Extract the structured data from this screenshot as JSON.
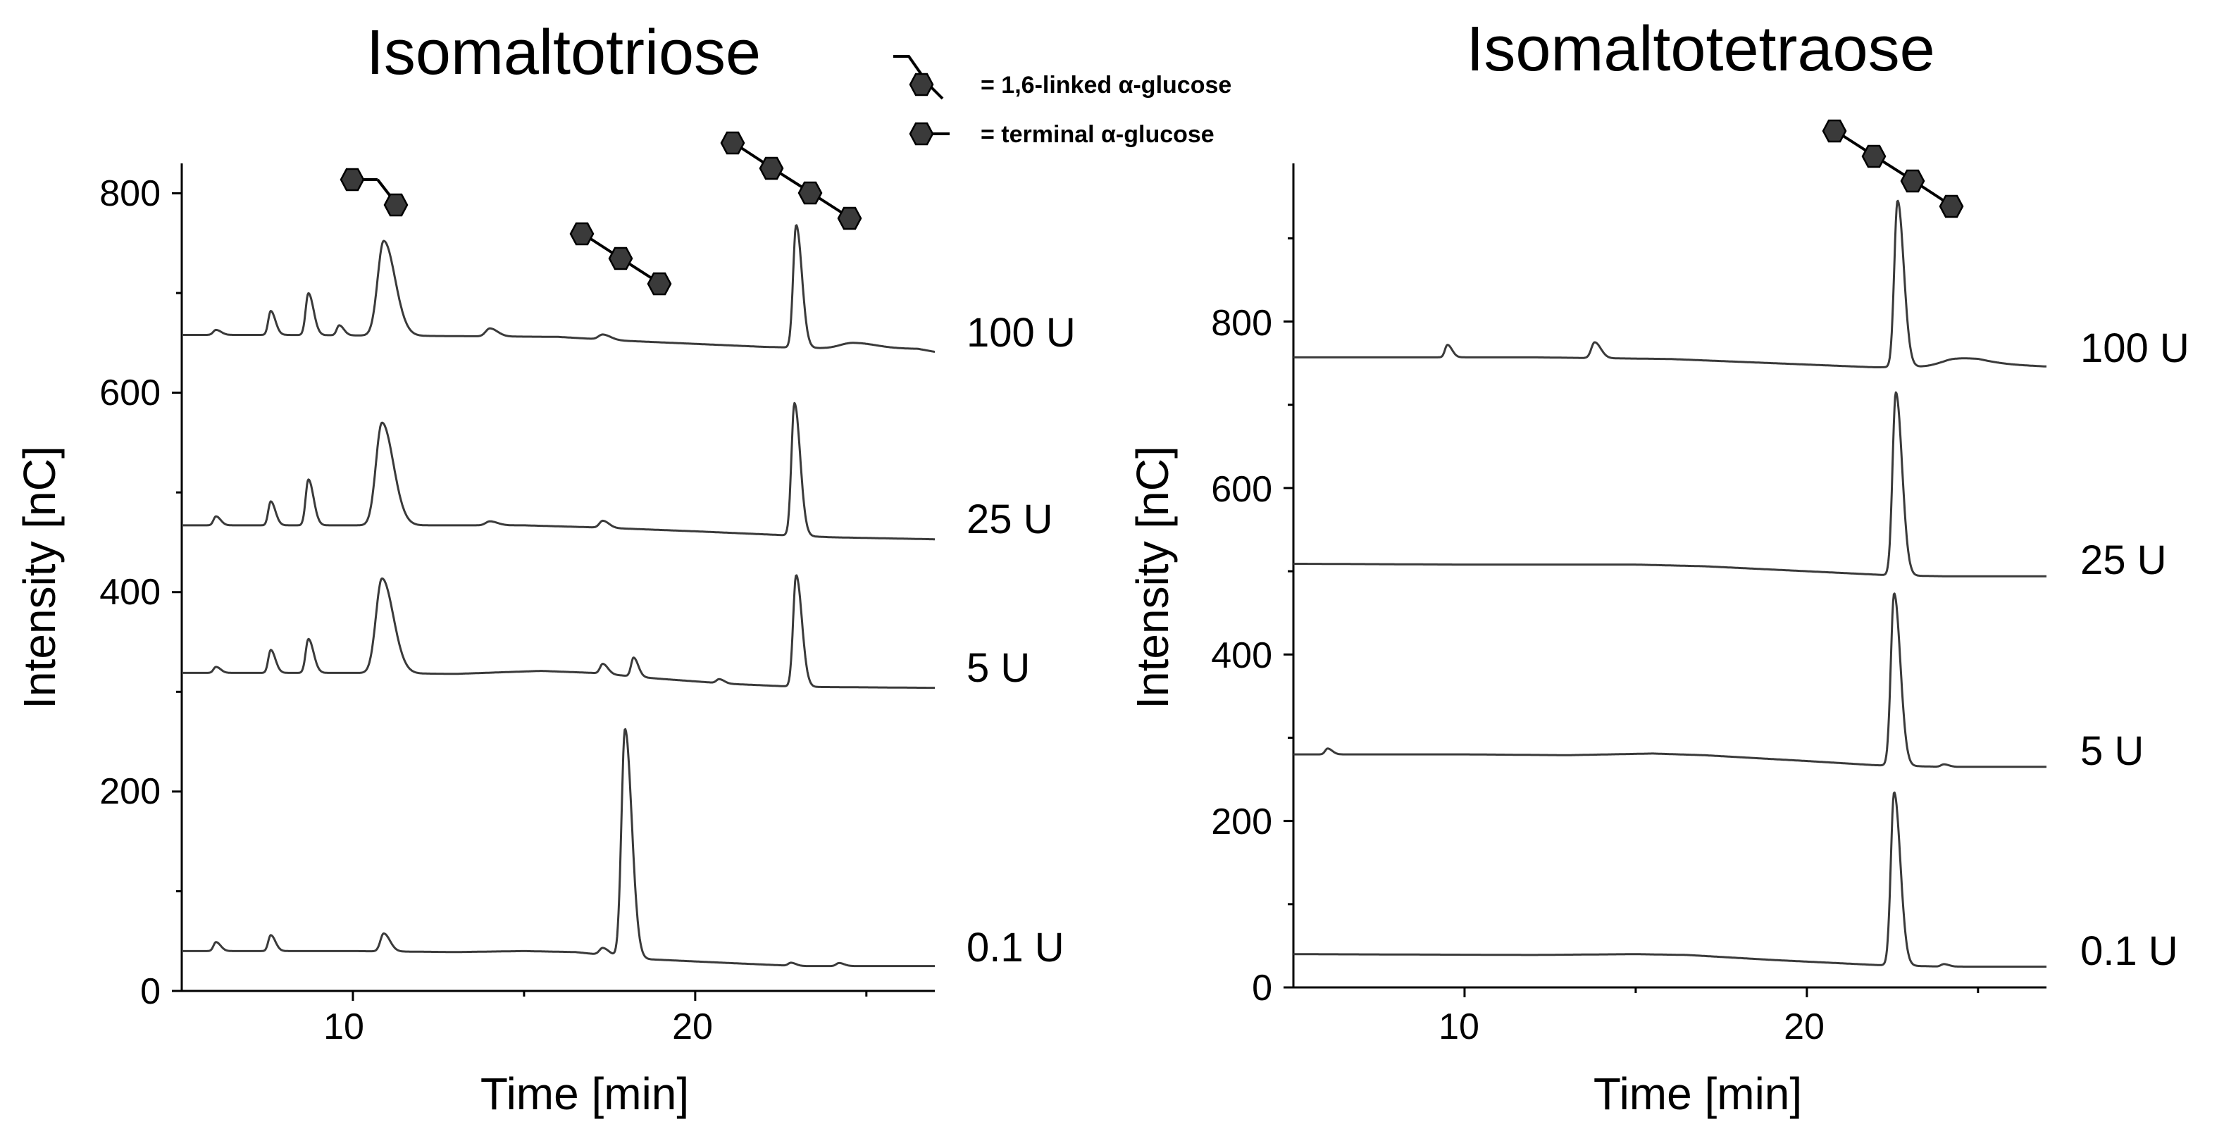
{
  "legend": {
    "linked_label": "= 1,6-linked α-glucose",
    "terminal_label": "= terminal α-glucose"
  },
  "colors": {
    "trace": "#3a3a3a",
    "glucose_fill": "#3a3a3a",
    "axis": "#000000"
  },
  "chart_data": [
    {
      "type": "line",
      "title": "Isomaltotriose",
      "xlabel": "Time [min]",
      "ylabel": "Intensity [nC]",
      "xlim": [
        5,
        27
      ],
      "ylim": [
        0,
        830
      ],
      "xticks": [
        10,
        20
      ],
      "yticks": [
        0,
        200,
        400,
        600,
        800
      ],
      "x_tick_labels": [
        "10",
        "20"
      ],
      "y_tick_labels": [
        "0",
        "200",
        "400",
        "600",
        "800"
      ],
      "series": [
        {
          "name": "100 U",
          "label_y": 650,
          "baseline": [
            [
              5,
              658
            ],
            [
              8,
              658
            ],
            [
              12,
              657
            ],
            [
              16,
              656
            ],
            [
              18,
              652
            ],
            [
              20,
              649
            ],
            [
              22,
              646
            ],
            [
              24.5,
              644
            ],
            [
              26.5,
              644
            ],
            [
              27,
              641
            ]
          ],
          "peaks": [
            [
              6,
              5,
              0.1
            ],
            [
              7.6,
              24,
              0.09
            ],
            [
              8.7,
              42,
              0.1
            ],
            [
              9.6,
              10,
              0.09
            ],
            [
              10.9,
              95,
              0.22
            ],
            [
              14,
              8,
              0.15
            ],
            [
              17.3,
              5,
              0.15
            ],
            [
              22.95,
              123,
              0.11
            ],
            [
              24.6,
              6,
              0.45
            ]
          ]
        },
        {
          "name": "25 U",
          "label_y": 468,
          "baseline": [
            [
              5,
              467
            ],
            [
              9,
              467
            ],
            [
              12,
              467
            ],
            [
              15,
              467
            ],
            [
              17,
              465
            ],
            [
              20,
              461
            ],
            [
              22,
              458
            ],
            [
              24,
              455
            ],
            [
              27,
              453
            ]
          ],
          "peaks": [
            [
              6,
              9,
              0.09
            ],
            [
              7.6,
              24,
              0.09
            ],
            [
              8.7,
              46,
              0.1
            ],
            [
              10.85,
              103,
              0.22
            ],
            [
              14,
              4,
              0.15
            ],
            [
              17.3,
              7,
              0.12
            ],
            [
              22.9,
              133,
              0.11
            ]
          ]
        },
        {
          "name": "5 U",
          "label_y": 320,
          "baseline": [
            [
              5,
              319
            ],
            [
              10,
              319
            ],
            [
              13,
              318
            ],
            [
              15.5,
              321
            ],
            [
              17,
              319
            ],
            [
              19,
              313
            ],
            [
              21,
              308
            ],
            [
              23,
              305
            ],
            [
              27,
              304
            ]
          ],
          "peaks": [
            [
              6,
              6,
              0.09
            ],
            [
              7.6,
              23,
              0.09
            ],
            [
              8.7,
              34,
              0.1
            ],
            [
              10.85,
              95,
              0.22
            ],
            [
              17.3,
              10,
              0.1
            ],
            [
              18.2,
              19,
              0.09
            ],
            [
              20.7,
              4,
              0.1
            ],
            [
              22.95,
              112,
              0.11
            ]
          ]
        },
        {
          "name": "0.1 U",
          "label_y": 40,
          "baseline": [
            [
              5,
              40
            ],
            [
              10,
              40
            ],
            [
              13,
              39
            ],
            [
              15,
              40
            ],
            [
              16.5,
              39
            ],
            [
              18.5,
              32
            ],
            [
              21,
              28
            ],
            [
              23,
              25
            ],
            [
              27,
              25
            ]
          ],
          "peaks": [
            [
              6,
              9,
              0.09
            ],
            [
              7.6,
              16,
              0.09
            ],
            [
              10.9,
              18,
              0.12
            ],
            [
              17.3,
              7,
              0.12
            ],
            [
              17.95,
              229,
              0.13
            ],
            [
              22.8,
              3,
              0.1
            ],
            [
              24.2,
              3,
              0.1
            ]
          ]
        }
      ],
      "annotations": [
        {
          "structure": "isomaltose",
          "units": 2,
          "peak_time": 10.9
        },
        {
          "structure": "isomaltotriose",
          "units": 3,
          "peak_time": 17.95
        },
        {
          "structure": "isomaltotetraose",
          "units": 4,
          "peak_time": 22.95
        }
      ]
    },
    {
      "type": "line",
      "title": "Isomaltotetraose",
      "xlabel": "Time [min]",
      "ylabel": "Intensity [nC]",
      "xlim": [
        5,
        27
      ],
      "ylim": [
        0,
        990
      ],
      "xticks": [
        10,
        20
      ],
      "yticks": [
        0,
        200,
        400,
        600,
        800
      ],
      "x_tick_labels": [
        "10",
        "20"
      ],
      "y_tick_labels": [
        "0",
        "200",
        "400",
        "600",
        "800"
      ],
      "series": [
        {
          "name": "100 U",
          "label_y": 770,
          "baseline": [
            [
              5,
              757
            ],
            [
              12,
              757
            ],
            [
              16,
              755
            ],
            [
              19,
              750
            ],
            [
              22,
              745
            ],
            [
              24,
              746
            ],
            [
              25,
              750
            ],
            [
              27,
              746
            ]
          ],
          "peaks": [
            [
              9.5,
              15,
              0.09
            ],
            [
              13.8,
              19,
              0.12
            ],
            [
              22.65,
              200,
              0.12
            ],
            [
              24.3,
              8,
              0.5
            ]
          ]
        },
        {
          "name": "25 U",
          "label_y": 515,
          "baseline": [
            [
              5,
              509
            ],
            [
              10,
              508
            ],
            [
              15,
              508
            ],
            [
              17,
              506
            ],
            [
              20,
              500
            ],
            [
              22.5,
              495
            ],
            [
              24,
              494
            ],
            [
              27,
              494
            ]
          ],
          "peaks": [
            [
              22.6,
              220,
              0.12
            ]
          ]
        },
        {
          "name": "5 U",
          "label_y": 285,
          "baseline": [
            [
              5,
              280
            ],
            [
              10,
              280
            ],
            [
              13,
              279
            ],
            [
              15.5,
              281
            ],
            [
              17,
              279
            ],
            [
              20,
              272
            ],
            [
              22,
              267
            ],
            [
              24,
              265
            ],
            [
              27,
              265
            ]
          ],
          "peaks": [
            [
              6,
              7,
              0.09
            ],
            [
              22.55,
              207,
              0.12
            ],
            [
              24,
              3,
              0.1
            ]
          ]
        },
        {
          "name": "0.1 U",
          "label_y": 45,
          "baseline": [
            [
              5,
              40
            ],
            [
              12,
              39
            ],
            [
              15,
              40
            ],
            [
              16.5,
              39
            ],
            [
              19,
              33
            ],
            [
              22,
              27
            ],
            [
              24,
              25
            ],
            [
              27,
              25
            ]
          ],
          "peaks": [
            [
              22.55,
              208,
              0.12
            ],
            [
              24,
              3,
              0.1
            ]
          ]
        }
      ],
      "annotations": [
        {
          "structure": "isomaltotetraose",
          "units": 4,
          "peak_time": 22.6
        }
      ]
    }
  ]
}
